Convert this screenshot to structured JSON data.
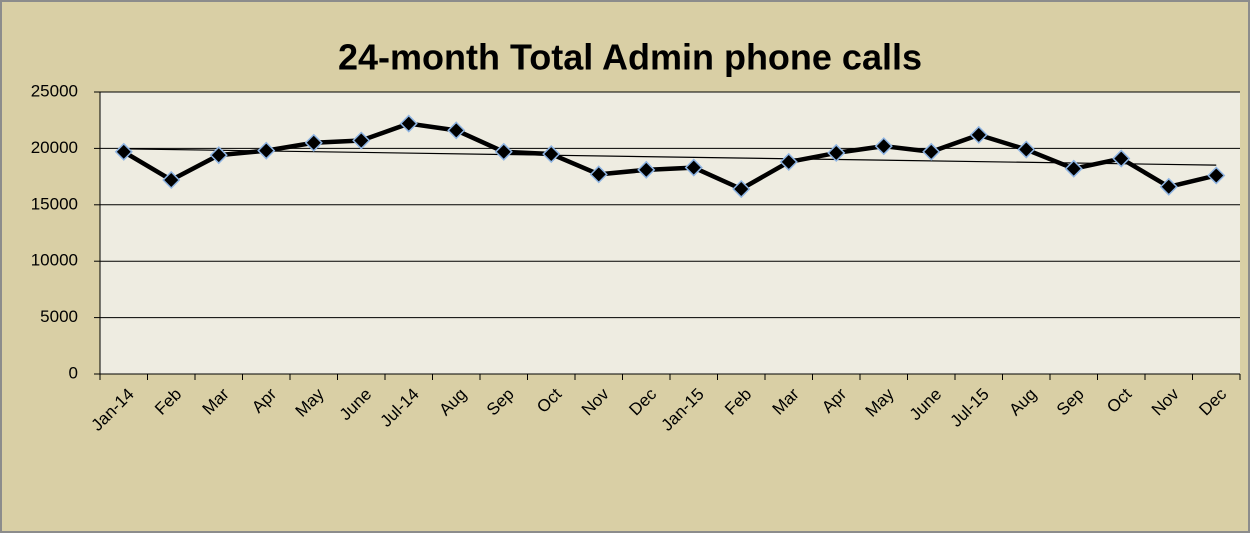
{
  "chart_data": {
    "type": "line",
    "title": "24-month Total Admin phone calls",
    "categories": [
      "Jan-14",
      "Feb",
      "Mar",
      "Apr",
      "May",
      "June",
      "Jul-14",
      "Aug",
      "Sep",
      "Oct",
      "Nov",
      "Dec",
      "Jan-15",
      "Feb",
      "Mar",
      "Apr",
      "May",
      "June",
      "Jul-15",
      "Aug",
      "Sep",
      "Oct",
      "Nov",
      "Dec"
    ],
    "series": [
      {
        "name": "Total Admin phone calls",
        "color": "#000000",
        "values": [
          19700,
          17200,
          19400,
          19800,
          20500,
          20700,
          22200,
          21600,
          19700,
          19500,
          17700,
          18100,
          18300,
          16400,
          18800,
          19600,
          20200,
          19700,
          21200,
          19900,
          18200,
          19100,
          16600,
          17600
        ]
      }
    ],
    "ylim": [
      0,
      25000
    ],
    "yticks": [
      0,
      5000,
      10000,
      15000,
      20000,
      25000
    ],
    "grid": true,
    "trendline": "linear",
    "marker": "diamond",
    "marker_edge_color": "#8eb4e3"
  }
}
